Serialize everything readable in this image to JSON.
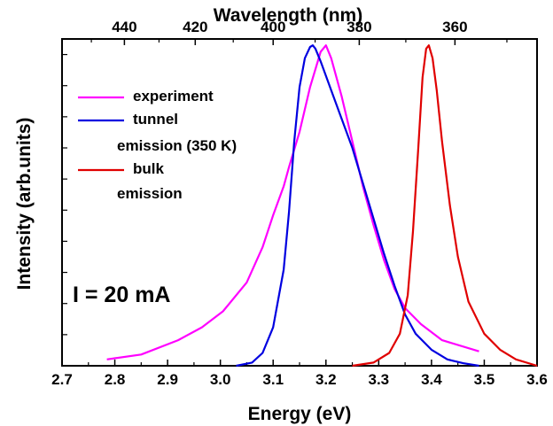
{
  "chart_data": {
    "type": "line",
    "title": "",
    "xlabel": "Energy (eV)",
    "ylabel": "Intensity (arb.units)",
    "top_xlabel": "Wavelength (nm)",
    "xlim": [
      2.7,
      3.6
    ],
    "ylim": [
      0,
      1.02
    ],
    "x_ticks": [
      2.7,
      2.8,
      2.9,
      3.0,
      3.1,
      3.2,
      3.3,
      3.4,
      3.5,
      3.6
    ],
    "x_tick_labels": [
      "2.7",
      "2.8",
      "2.9",
      "3.0",
      "3.1",
      "3.2",
      "3.3",
      "3.4",
      "3.5",
      "3.6"
    ],
    "top_ticks_nm": [
      440,
      420,
      400,
      380,
      360
    ],
    "top_tick_labels": [
      "440",
      "420",
      "400",
      "380",
      "360"
    ],
    "grid": false,
    "legend_position": "top-left",
    "annotation": "I = 20 mA",
    "series": [
      {
        "name": "experiment",
        "color": "#ff00ff",
        "x": [
          2.785,
          2.85,
          2.92,
          2.965,
          3.005,
          3.05,
          3.08,
          3.1,
          3.12,
          3.13,
          3.15,
          3.17,
          3.19,
          3.2,
          3.21,
          3.23,
          3.25,
          3.27,
          3.29,
          3.31,
          3.33,
          3.35,
          3.38,
          3.42,
          3.49
        ],
        "y": [
          0.02,
          0.035,
          0.08,
          0.12,
          0.17,
          0.26,
          0.37,
          0.47,
          0.56,
          0.62,
          0.73,
          0.87,
          0.98,
          1.0,
          0.96,
          0.84,
          0.7,
          0.56,
          0.44,
          0.33,
          0.24,
          0.18,
          0.13,
          0.08,
          0.045
        ]
      },
      {
        "name": "tunnel emission (350 K)",
        "color": "#0000e0",
        "x": [
          3.03,
          3.06,
          3.08,
          3.1,
          3.12,
          3.13,
          3.14,
          3.15,
          3.16,
          3.17,
          3.175,
          3.18,
          3.19,
          3.21,
          3.23,
          3.25,
          3.27,
          3.29,
          3.31,
          3.33,
          3.35,
          3.37,
          3.4,
          3.43,
          3.46,
          3.49
        ],
        "y": [
          0.0,
          0.01,
          0.04,
          0.12,
          0.3,
          0.48,
          0.7,
          0.87,
          0.96,
          0.995,
          1.0,
          0.99,
          0.95,
          0.86,
          0.77,
          0.68,
          0.57,
          0.46,
          0.35,
          0.25,
          0.16,
          0.1,
          0.05,
          0.02,
          0.008,
          0.0
        ]
      },
      {
        "name": "bulk emission",
        "color": "#e00000",
        "x": [
          3.25,
          3.29,
          3.32,
          3.34,
          3.355,
          3.365,
          3.375,
          3.383,
          3.39,
          3.395,
          3.402,
          3.41,
          3.42,
          3.435,
          3.45,
          3.47,
          3.5,
          3.53,
          3.56,
          3.6
        ],
        "y": [
          0.0,
          0.01,
          0.04,
          0.1,
          0.22,
          0.42,
          0.68,
          0.9,
          0.99,
          1.0,
          0.96,
          0.86,
          0.7,
          0.5,
          0.34,
          0.2,
          0.1,
          0.05,
          0.02,
          0.0
        ]
      }
    ],
    "legend": [
      {
        "color": "#ff00ff",
        "lines": [
          "experiment"
        ]
      },
      {
        "color": "#0000e0",
        "lines": [
          "tunnel",
          "emission (350 K)"
        ]
      },
      {
        "color": "#e00000",
        "lines": [
          "bulk",
          "emission"
        ]
      }
    ]
  }
}
